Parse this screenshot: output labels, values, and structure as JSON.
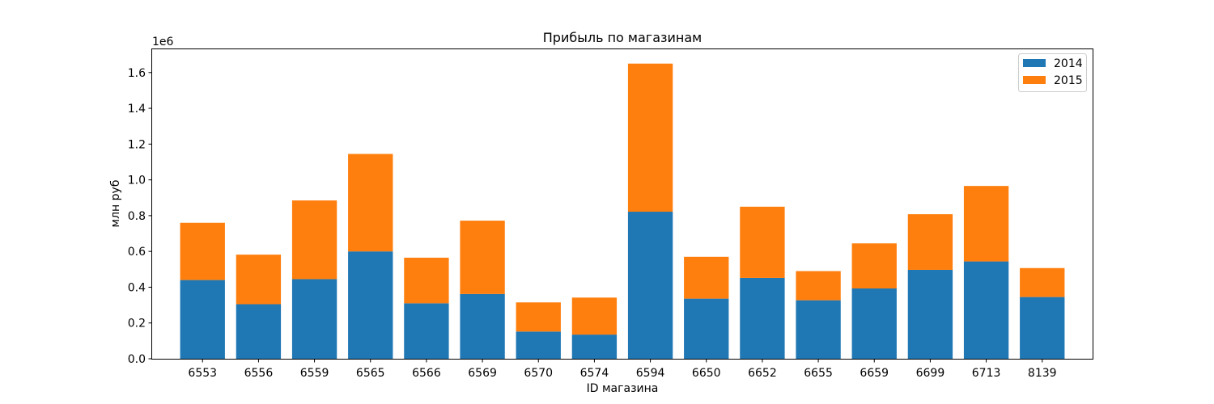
{
  "chart_data": {
    "type": "bar",
    "stacked": true,
    "title": "Прибыль по магазинам",
    "xlabel": "ID магазина",
    "ylabel": "млн руб",
    "y_offset_label": "1e6",
    "ylim": [
      0,
      1.73
    ],
    "yticks": [
      0.0,
      0.2,
      0.4,
      0.6,
      0.8,
      1.0,
      1.2,
      1.4,
      1.6
    ],
    "ytick_labels": [
      "0.0",
      "0.2",
      "0.4",
      "0.6",
      "0.8",
      "1.0",
      "1.2",
      "1.4",
      "1.6"
    ],
    "grid": false,
    "legend_position": "top-right",
    "categories": [
      "6553",
      "6556",
      "6559",
      "6565",
      "6566",
      "6569",
      "6570",
      "6574",
      "6594",
      "6650",
      "6652",
      "6655",
      "6659",
      "6699",
      "6713",
      "8139"
    ],
    "series": [
      {
        "name": "2014",
        "color": "#1f77b4",
        "values": [
          0.44,
          0.305,
          0.445,
          0.6,
          0.31,
          0.362,
          0.152,
          0.135,
          0.822,
          0.336,
          0.452,
          0.327,
          0.393,
          0.497,
          0.544,
          0.345
        ]
      },
      {
        "name": "2015",
        "color": "#ff7f0e",
        "values": [
          0.32,
          0.277,
          0.44,
          0.545,
          0.255,
          0.41,
          0.163,
          0.207,
          0.828,
          0.234,
          0.398,
          0.163,
          0.252,
          0.311,
          0.422,
          0.162
        ]
      }
    ]
  }
}
